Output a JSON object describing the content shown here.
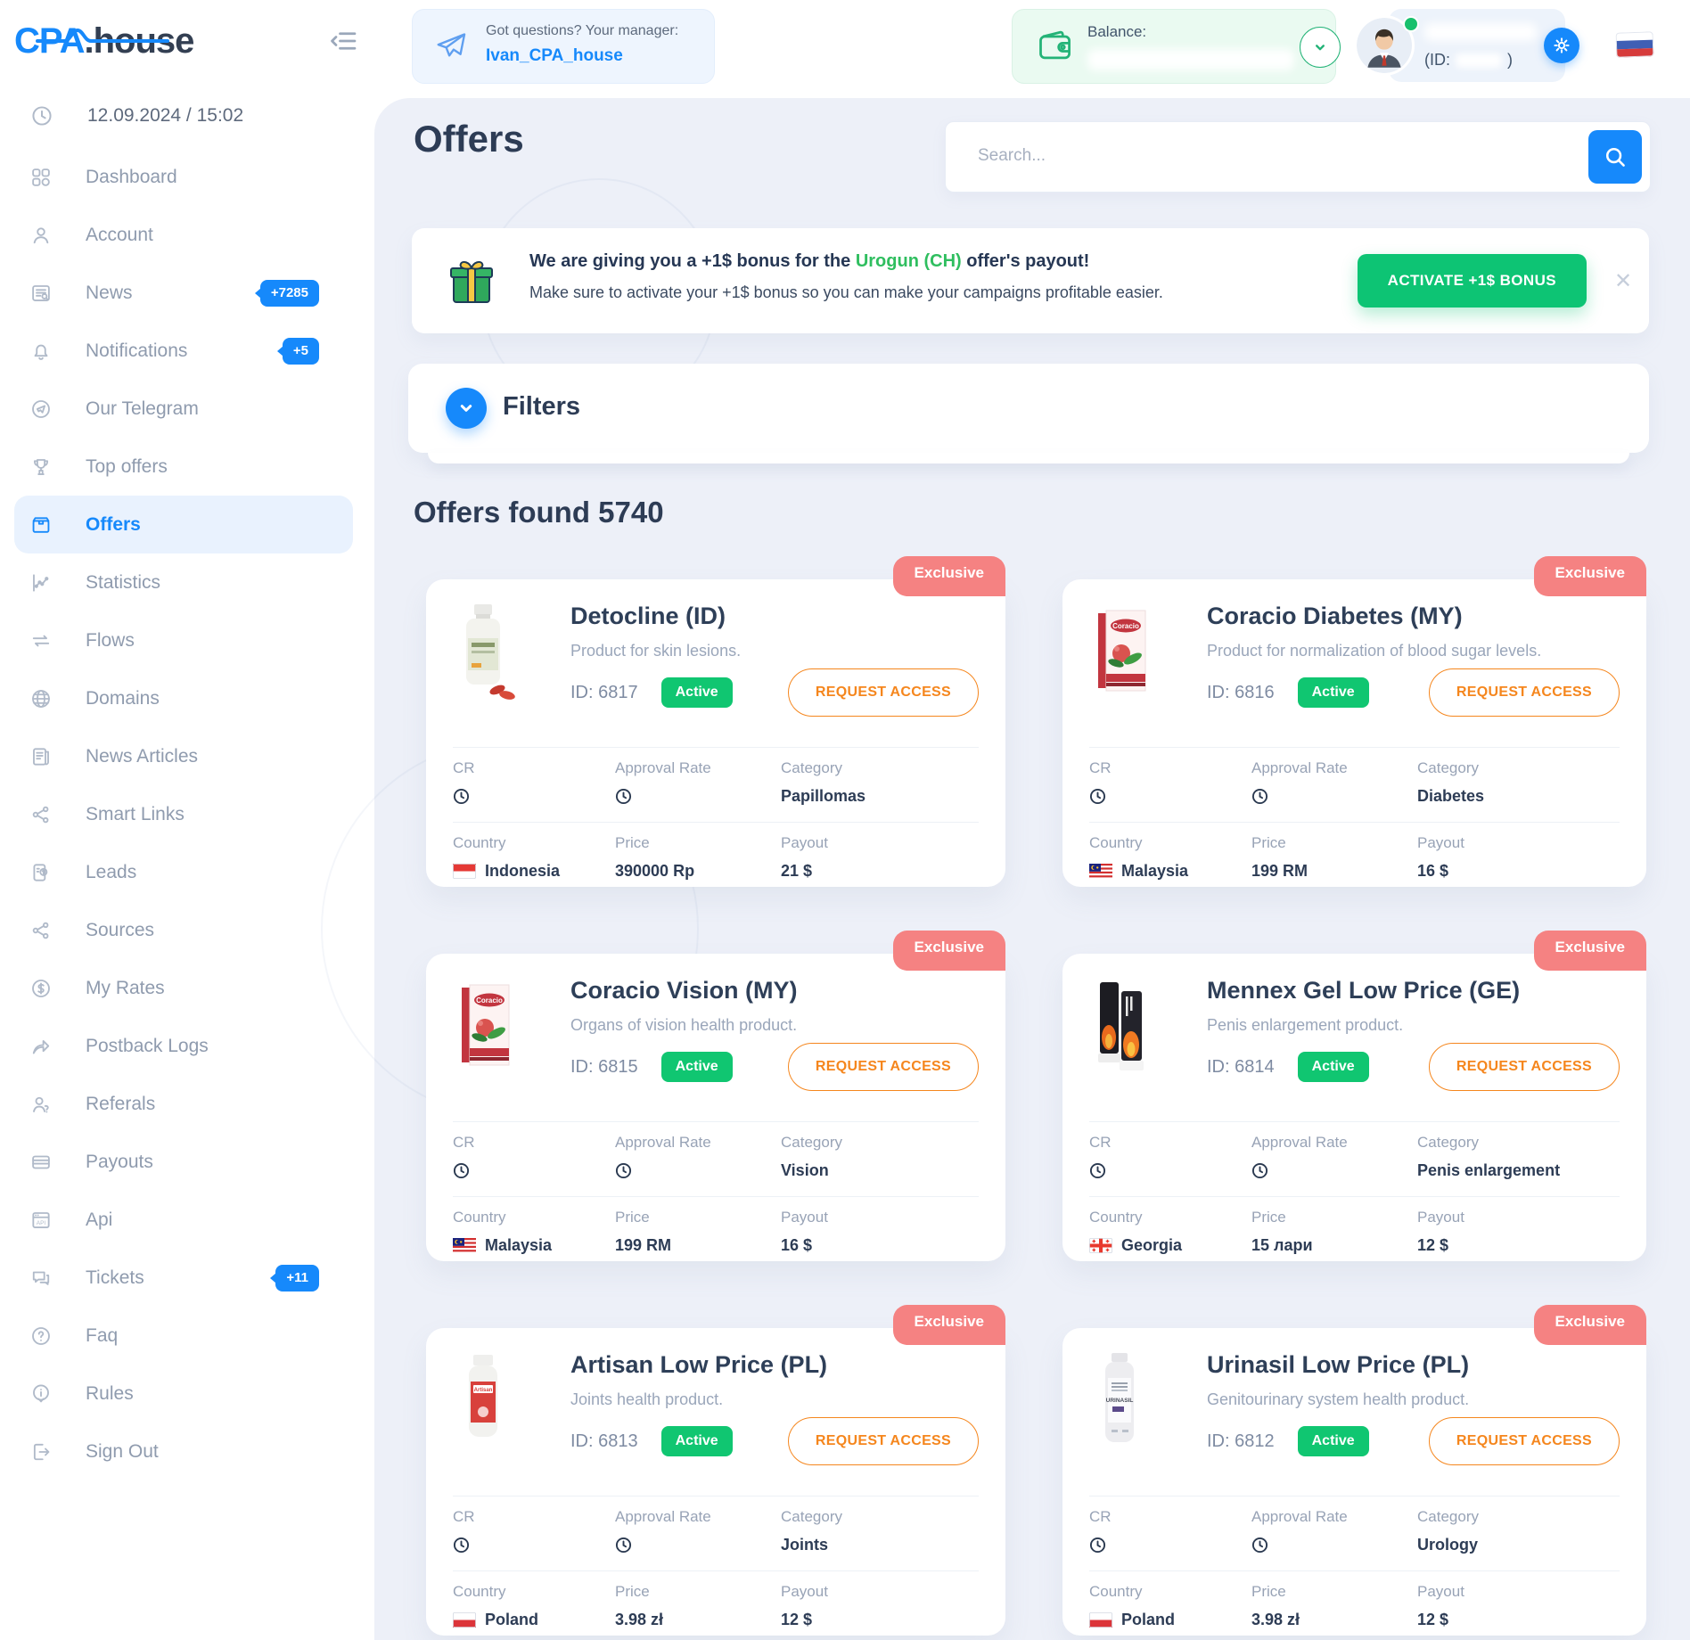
{
  "header": {
    "logo_primary": "CPA",
    "logo_secondary": ".house",
    "manager_label": "Got questions? Your manager:",
    "manager_name": "Ivan_CPA_house",
    "balance_label": "Balance:",
    "user_id_prefix": "(ID:",
    "user_id_suffix": ")"
  },
  "sidebar": {
    "date": "12.09.2024 / 15:02",
    "items": [
      {
        "label": "Dashboard",
        "icon": "dashboard-icon"
      },
      {
        "label": "Account",
        "icon": "account-icon"
      },
      {
        "label": "News",
        "icon": "news-icon",
        "badge": "+7285"
      },
      {
        "label": "Notifications",
        "icon": "notifications-icon",
        "badge": "+5"
      },
      {
        "label": "Our Telegram",
        "icon": "telegram-icon"
      },
      {
        "label": "Top offers",
        "icon": "top-offers-icon"
      },
      {
        "label": "Offers",
        "icon": "offers-icon",
        "active": true
      },
      {
        "label": "Statistics",
        "icon": "statistics-icon"
      },
      {
        "label": "Flows",
        "icon": "flows-icon"
      },
      {
        "label": "Domains",
        "icon": "domains-icon"
      },
      {
        "label": "News Articles",
        "icon": "news-articles-icon"
      },
      {
        "label": "Smart Links",
        "icon": "smart-links-icon"
      },
      {
        "label": "Leads",
        "icon": "leads-icon"
      },
      {
        "label": "Sources",
        "icon": "sources-icon"
      },
      {
        "label": "My Rates",
        "icon": "my-rates-icon"
      },
      {
        "label": "Postback Logs",
        "icon": "postback-logs-icon"
      },
      {
        "label": "Referals",
        "icon": "referals-icon"
      },
      {
        "label": "Payouts",
        "icon": "payouts-icon"
      },
      {
        "label": "Api",
        "icon": "api-icon"
      },
      {
        "label": "Tickets",
        "icon": "tickets-icon",
        "badge": "+11"
      },
      {
        "label": "Faq",
        "icon": "faq-icon"
      },
      {
        "label": "Rules",
        "icon": "rules-icon"
      },
      {
        "label": "Sign Out",
        "icon": "sign-out-icon"
      }
    ]
  },
  "main": {
    "title": "Offers",
    "search_placeholder": "Search...",
    "banner": {
      "line1_prefix": "We are giving you a +1$ bonus for the ",
      "line1_highlight": "Urogun (CH)",
      "line1_suffix": " offer's payout!",
      "line2": "Make sure to activate your +1$ bonus so you can make your campaigns profitable easier.",
      "button_label": "ACTIVATE +1$ BONUS"
    },
    "filters_label": "Filters",
    "results_heading": "Offers found 5740",
    "labels": {
      "cr": "CR",
      "approval_rate": "Approval Rate",
      "category": "Category",
      "country": "Country",
      "price": "Price",
      "payout": "Payout",
      "request_access": "REQUEST ACCESS",
      "exclusive": "Exclusive"
    }
  },
  "offers": [
    {
      "title": "Detocline (ID)",
      "description": "Product for skin lesions.",
      "id": "ID: 6817",
      "status": "Active",
      "category": "Papillomas",
      "country": "Indonesia",
      "flag": "indonesia",
      "price": "390000 Rp",
      "payout": "21 $",
      "product": "detocline"
    },
    {
      "title": "Coracio Diabetes (MY)",
      "description": "Product for normalization of blood sugar levels.",
      "id": "ID: 6816",
      "status": "Active",
      "category": "Diabetes",
      "country": "Malaysia",
      "flag": "malaysia",
      "price": "199 RM",
      "payout": "16 $",
      "product": "coracio"
    },
    {
      "title": "Coracio Vision (MY)",
      "description": "Organs of vision health product.",
      "id": "ID: 6815",
      "status": "Active",
      "category": "Vision",
      "country": "Malaysia",
      "flag": "malaysia",
      "price": "199 RM",
      "payout": "16 $",
      "product": "coracio"
    },
    {
      "title": "Mennex Gel Low Price (GE)",
      "description": "Penis enlargement product.",
      "id": "ID: 6814",
      "status": "Active",
      "category": "Penis enlargement",
      "country": "Georgia",
      "flag": "georgia",
      "price": "15 лари",
      "payout": "12 $",
      "product": "mennex"
    },
    {
      "title": "Artisan Low Price (PL)",
      "description": "Joints health product.",
      "id": "ID: 6813",
      "status": "Active",
      "category": "Joints",
      "country": "Poland",
      "flag": "poland",
      "price": "3.98 zł",
      "payout": "12 $",
      "product": "artisan"
    },
    {
      "title": "Urinasil Low Price (PL)",
      "description": "Genitourinary system health product.",
      "id": "ID: 6812",
      "status": "Active",
      "category": "Urology",
      "country": "Poland",
      "flag": "poland",
      "price": "3.98 zł",
      "payout": "12 $",
      "product": "urinasil"
    }
  ],
  "colors": {
    "accent_blue": "#1689fb",
    "status_green": "#10c671",
    "button_green": "#0dc474",
    "request_orange": "#f5861d",
    "exclusive_red": "#f58282",
    "banner_green_text": "#2fbe5f"
  }
}
